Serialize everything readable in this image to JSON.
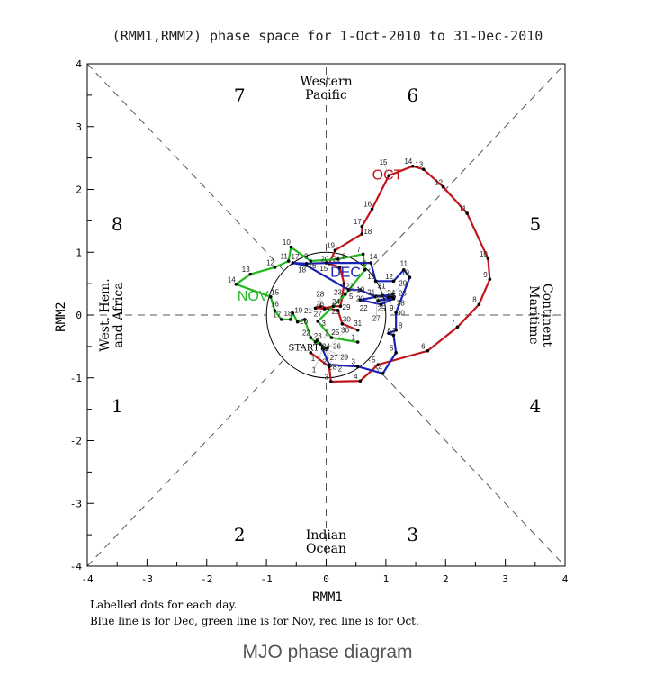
{
  "chart_data": {
    "type": "line",
    "title": "(RMM1,RMM2) phase space for  1-Oct-2010 to 31-Dec-2010",
    "xlabel": "RMM1",
    "ylabel": "RMM2",
    "xlim": [
      -4,
      4
    ],
    "ylim": [
      -4,
      4
    ],
    "x_ticks": [
      "-4",
      "-3",
      "-2",
      "-1",
      "0",
      "1",
      "2",
      "3",
      "4"
    ],
    "y_ticks": [
      "-4",
      "-3",
      "-2",
      "-1",
      "0",
      "1",
      "2",
      "3",
      "4"
    ],
    "phases": [
      {
        "label": "1",
        "x": -3.5,
        "y": -1.45
      },
      {
        "label": "2",
        "x": -1.45,
        "y": -3.5
      },
      {
        "label": "3",
        "x": 1.45,
        "y": -3.5
      },
      {
        "label": "4",
        "x": 3.5,
        "y": -1.45
      },
      {
        "label": "5",
        "x": 3.5,
        "y": 1.45
      },
      {
        "label": "6",
        "x": 1.45,
        "y": 3.5
      },
      {
        "label": "7",
        "x": -1.45,
        "y": 3.5
      },
      {
        "label": "8",
        "x": -3.5,
        "y": 1.45
      }
    ],
    "regions": {
      "top": [
        "Western",
        "Pacific"
      ],
      "bottom": [
        "Indian",
        "Ocean"
      ],
      "left": [
        "West. Hem.",
        "and Africa"
      ],
      "right": [
        "Maritime",
        "Continent"
      ]
    },
    "start_label": "START",
    "series": [
      {
        "name": "OCT",
        "color": "#c0161b",
        "label_at": [
          1.1,
          2.15
        ],
        "x": [
          -0.26,
          0.05,
          0.08,
          0.57,
          0.87,
          1.7,
          2.2,
          2.56,
          2.74,
          2.71,
          2.36,
          1.96,
          1.63,
          1.45,
          1.05,
          0.77,
          0.6,
          0.6,
          0.15,
          0.05,
          0.23,
          0.3,
          0.27,
          0.24,
          0.12,
          -0.03,
          -0.18,
          -0.1,
          0.2,
          0.27,
          0.53
        ],
        "y": [
          -0.6,
          -0.82,
          -1.06,
          -1.05,
          -0.79,
          -0.57,
          -0.19,
          0.17,
          0.57,
          0.9,
          1.62,
          2.04,
          2.32,
          2.37,
          2.22,
          1.69,
          1.41,
          1.29,
          1.03,
          0.82,
          0.76,
          0.5,
          0.29,
          0.14,
          0.14,
          0.1,
          0.11,
          0.14,
          0.07,
          -0.14,
          -0.24
        ]
      },
      {
        "name": "NOV",
        "color": "#22b822",
        "label_at": [
          -1.15,
          0.22
        ],
        "x": [
          0.53,
          0.09,
          -0.14,
          0.12,
          0.32,
          0.65,
          0.62,
          0.2,
          -0.26,
          -0.59,
          -0.63,
          -0.86,
          -1.27,
          -1.51,
          -0.93,
          -0.86,
          -0.75,
          -0.6,
          -0.56,
          -0.48,
          -0.36,
          -0.26,
          -0.18,
          -0.1,
          -0.15,
          -0.06,
          -0.04,
          -0.02,
          0.0,
          0.02
        ],
        "y": [
          -0.43,
          -0.36,
          -0.1,
          0.14,
          0.33,
          0.72,
          0.97,
          0.89,
          0.86,
          1.08,
          0.86,
          0.76,
          0.65,
          0.49,
          0.29,
          0.07,
          -0.07,
          -0.07,
          0.03,
          -0.11,
          -0.07,
          -0.36,
          -0.43,
          -0.46,
          -0.4,
          -0.5,
          -0.52,
          -0.54,
          -0.55,
          -0.53
        ]
      },
      {
        "name": "DEC",
        "color": "#1a22b5",
        "label_at": [
          0.4,
          0.6
        ],
        "x": [
          -0.06,
          0.05,
          0.53,
          0.95,
          1.17,
          1.13,
          1.05,
          1.17,
          1.17,
          1.4,
          1.3,
          1.13,
          0.83,
          0.75,
          0.0,
          -0.33,
          -0.56,
          -0.33,
          0.38,
          0.57,
          0.83,
          0.57,
          0.92,
          1.13,
          0.87,
          1.14,
          0.84,
          1.11,
          1.05,
          0.95,
          1.1
        ],
        "y": [
          -0.54,
          -0.79,
          -0.82,
          -0.93,
          -0.6,
          -0.32,
          -0.29,
          -0.24,
          0.04,
          0.6,
          0.72,
          0.54,
          0.54,
          0.83,
          0.83,
          0.82,
          0.83,
          0.79,
          0.4,
          0.4,
          0.29,
          0.24,
          0.17,
          0.26,
          0.23,
          0.29,
          0.3,
          0.32,
          0.28,
          0.31,
          0.3
        ]
      }
    ],
    "notes": [
      "Labelled dots for each day.",
      "Blue line is for Dec, green line is for Nov, red line is for Oct."
    ]
  },
  "caption": "MJO phase diagram"
}
